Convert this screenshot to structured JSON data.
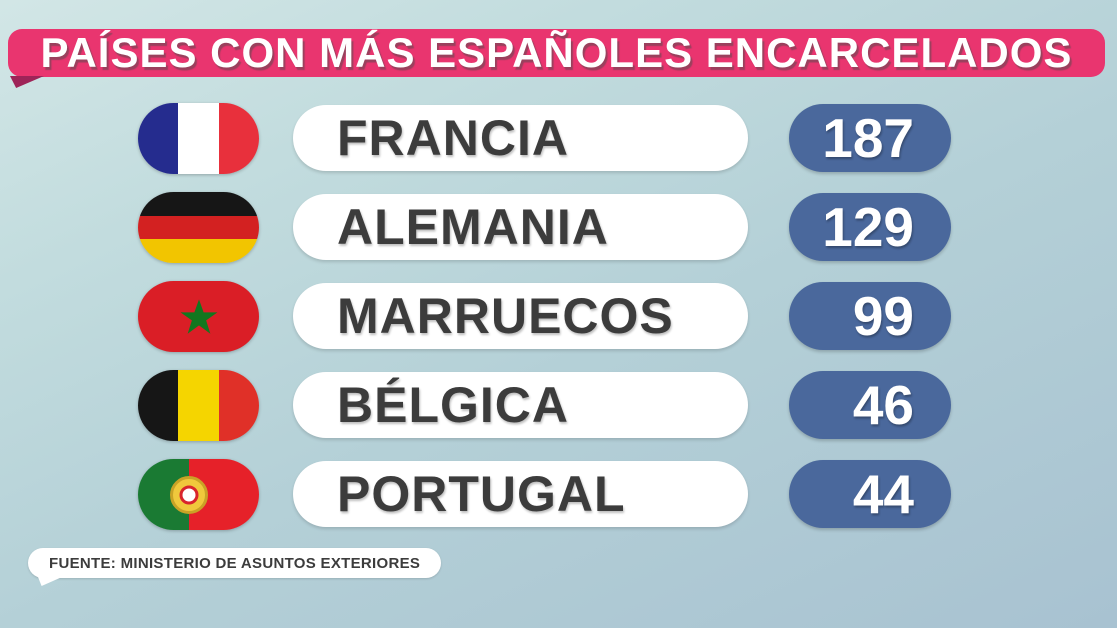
{
  "header": {
    "title": "PAÍSES CON MÁS ESPAÑOLES ENCARCELADOS"
  },
  "rows": [
    {
      "country": "FRANCIA",
      "value": "187",
      "flag": "france"
    },
    {
      "country": "ALEMANIA",
      "value": "129",
      "flag": "germany"
    },
    {
      "country": "MARRUECOS",
      "value": "99",
      "flag": "morocco"
    },
    {
      "country": "BÉLGICA",
      "value": "46",
      "flag": "belgium"
    },
    {
      "country": "PORTUGAL",
      "value": "44",
      "flag": "portugal"
    }
  ],
  "footer": {
    "source": "FUENTE: MINISTERIO DE ASUNTOS EXTERIORES"
  },
  "flags": {
    "france": {
      "type": "vertical",
      "stripes": [
        "#252c8e",
        "#ffffff",
        "#e8303c"
      ]
    },
    "germany": {
      "type": "horizontal",
      "stripes": [
        "#161616",
        "#d32121",
        "#f2c500"
      ]
    },
    "morocco": {
      "type": "star",
      "bg": "#da1e26",
      "star": "#12771f"
    },
    "belgium": {
      "type": "vertical",
      "stripes": [
        "#161616",
        "#f5d500",
        "#e03028"
      ]
    },
    "portugal": {
      "type": "portugal",
      "left": "#1a7a33",
      "right": "#e62129",
      "left_width": "42%",
      "emblem_outer": "#f0c83c",
      "emblem_ring": "#d8252c",
      "emblem_inner": "#ffffff"
    }
  },
  "colors": {
    "banner_bg": "#e9356f",
    "banner_tail": "#9e2458",
    "value_pill_bg": "#4a689c",
    "text_dark": "#3c3c3c",
    "pill_bg": "#ffffff"
  },
  "chart_data": {
    "type": "table",
    "title": "PAÍSES CON MÁS ESPAÑOLES ENCARCELADOS",
    "categories": [
      "FRANCIA",
      "ALEMANIA",
      "MARRUECOS",
      "BÉLGICA",
      "PORTUGAL"
    ],
    "values": [
      187,
      129,
      99,
      46,
      44
    ],
    "source": "FUENTE: MINISTERIO DE ASUNTOS EXTERIORES",
    "legend": "none",
    "grid": "off"
  }
}
